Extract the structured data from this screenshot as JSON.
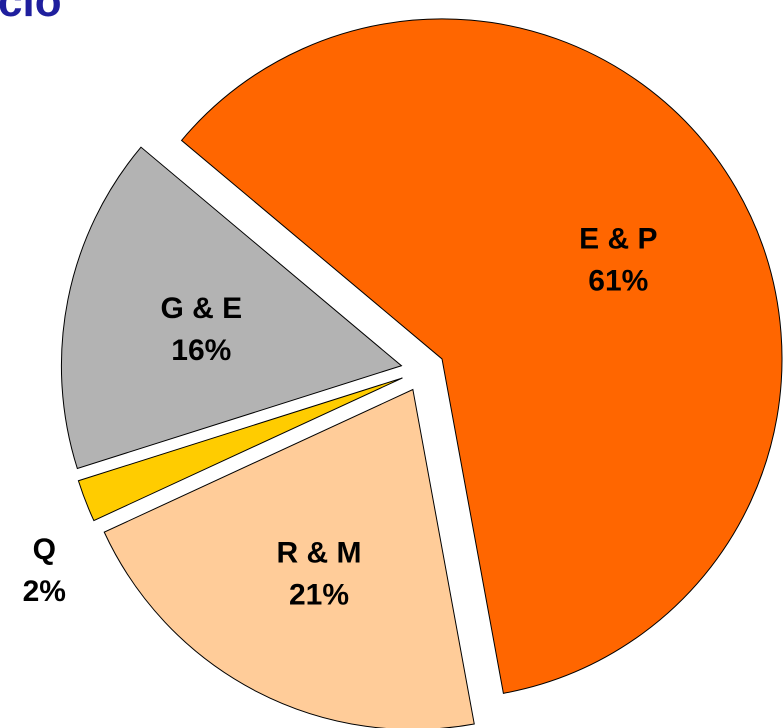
{
  "chart_data": {
    "type": "pie",
    "title": "cio",
    "labels": [
      "E & P",
      "R & M",
      "Q",
      "G & E"
    ],
    "values": [
      61,
      21,
      2,
      16
    ],
    "value_labels": [
      "61%",
      "21%",
      "2%",
      "16%"
    ],
    "colors": [
      "#ff6600",
      "#ffcc99",
      "#ffcc00",
      "#b3b3b3"
    ],
    "exploded": true
  }
}
